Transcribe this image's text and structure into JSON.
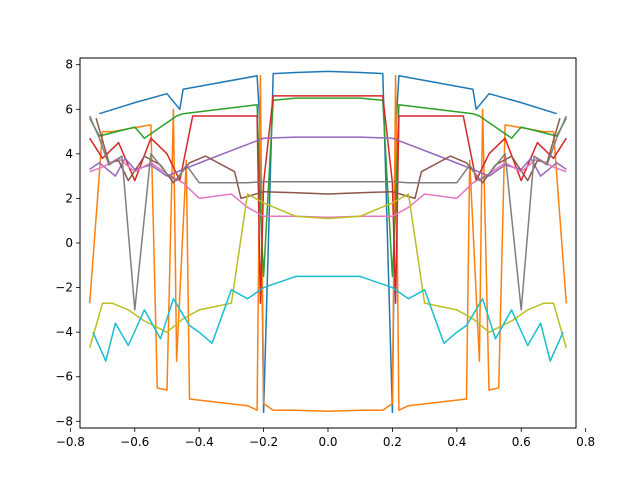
{
  "chart_data": {
    "type": "line",
    "title": "",
    "xlabel": "",
    "ylabel": "",
    "xlim": [
      -0.77,
      0.77
    ],
    "ylim": [
      -8.3,
      8.3
    ],
    "x_ticks": [
      -0.8,
      -0.6,
      -0.4,
      -0.2,
      0.0,
      0.2,
      0.4,
      0.6,
      0.8
    ],
    "x_tick_labels": [
      "−0.8",
      "−0.6",
      "−0.4",
      "−0.2",
      "0.0",
      "0.2",
      "0.4",
      "0.6",
      "0.8"
    ],
    "y_ticks": [
      -8,
      -6,
      -4,
      -2,
      0,
      2,
      4,
      6,
      8
    ],
    "y_tick_labels": [
      "−8",
      "−6",
      "−4",
      "−2",
      "0",
      "2",
      "4",
      "6",
      "8"
    ],
    "grid": false,
    "legend": "none",
    "series": [
      {
        "color": "#1f77b4",
        "x": [
          -0.71,
          -0.6,
          -0.5,
          -0.46,
          -0.45,
          -0.22,
          -0.21,
          -0.2,
          -0.17,
          -0.1,
          0.0,
          0.1,
          0.17,
          0.2,
          0.21,
          0.22,
          0.45,
          0.46,
          0.5,
          0.6,
          0.71
        ],
        "y": [
          5.8,
          6.3,
          6.7,
          6.0,
          6.9,
          7.5,
          5.0,
          -7.6,
          7.6,
          7.65,
          7.7,
          7.65,
          7.6,
          -7.6,
          5.0,
          7.5,
          6.9,
          6.0,
          6.7,
          6.3,
          5.8
        ]
      },
      {
        "color": "#ff7f0e",
        "x": [
          -0.74,
          -0.7,
          -0.67,
          -0.55,
          -0.53,
          -0.5,
          -0.48,
          -0.47,
          -0.44,
          -0.43,
          -0.25,
          -0.22,
          -0.21,
          -0.2,
          -0.17,
          -0.1,
          0.0,
          0.1,
          0.17,
          0.2,
          0.21,
          0.22,
          0.25,
          0.43,
          0.44,
          0.47,
          0.48,
          0.5,
          0.53,
          0.55,
          0.67,
          0.7,
          0.74
        ],
        "y": [
          -2.7,
          5.0,
          5.0,
          5.3,
          -6.5,
          -6.6,
          6.0,
          -5.3,
          3.7,
          -7.0,
          -7.3,
          -7.5,
          7.5,
          -7.2,
          -7.5,
          -7.5,
          -7.55,
          -7.5,
          -7.5,
          -7.2,
          7.5,
          -7.5,
          -7.3,
          -7.0,
          3.7,
          -5.3,
          6.0,
          -6.6,
          -6.5,
          5.3,
          5.0,
          5.0,
          -2.7
        ]
      },
      {
        "color": "#2ca02c",
        "x": [
          -0.74,
          -0.71,
          -0.6,
          -0.57,
          -0.47,
          -0.45,
          -0.22,
          -0.21,
          -0.2,
          -0.17,
          -0.1,
          0.0,
          0.1,
          0.17,
          0.2,
          0.21,
          0.22,
          0.45,
          0.47,
          0.57,
          0.6,
          0.71,
          0.74
        ],
        "y": [
          5.6,
          4.8,
          5.2,
          4.7,
          5.7,
          5.8,
          6.2,
          1.5,
          -1.5,
          6.4,
          6.5,
          6.5,
          6.5,
          6.4,
          -1.5,
          1.5,
          6.2,
          5.8,
          5.7,
          4.7,
          5.2,
          4.8,
          5.6
        ]
      },
      {
        "color": "#d62728",
        "x": [
          -0.74,
          -0.7,
          -0.65,
          -0.6,
          -0.55,
          -0.5,
          -0.46,
          -0.42,
          -0.22,
          -0.21,
          -0.2,
          -0.17,
          -0.1,
          0.0,
          0.1,
          0.17,
          0.2,
          0.21,
          0.22,
          0.42,
          0.46,
          0.5,
          0.55,
          0.6,
          0.65,
          0.7,
          0.74
        ],
        "y": [
          4.7,
          3.8,
          4.5,
          2.8,
          4.7,
          4.0,
          2.8,
          5.7,
          5.7,
          -2.7,
          2.7,
          6.6,
          6.6,
          6.6,
          6.6,
          6.6,
          2.7,
          -2.7,
          5.7,
          5.7,
          2.8,
          4.0,
          4.7,
          2.8,
          4.5,
          3.8,
          4.7
        ]
      },
      {
        "color": "#9467bd",
        "x": [
          -0.74,
          -0.71,
          -0.66,
          -0.63,
          -0.6,
          -0.55,
          -0.5,
          -0.45,
          -0.38,
          -0.2,
          -0.1,
          0.0,
          0.1,
          0.2,
          0.38,
          0.45,
          0.5,
          0.55,
          0.6,
          0.63,
          0.66,
          0.71,
          0.74
        ],
        "y": [
          3.3,
          3.6,
          3.0,
          3.8,
          3.3,
          3.5,
          3.0,
          3.3,
          3.7,
          4.7,
          4.75,
          4.75,
          4.75,
          4.7,
          3.7,
          3.3,
          3.0,
          3.5,
          3.3,
          3.8,
          3.0,
          3.6,
          3.3
        ]
      },
      {
        "color": "#8c564b",
        "x": [
          -0.72,
          -0.68,
          -0.65,
          -0.62,
          -0.57,
          -0.52,
          -0.48,
          -0.43,
          -0.38,
          -0.29,
          -0.27,
          -0.2,
          -0.1,
          0.0,
          0.1,
          0.2,
          0.27,
          0.29,
          0.38,
          0.43,
          0.48,
          0.52,
          0.57,
          0.62,
          0.65,
          0.68,
          0.72
        ],
        "y": [
          5.6,
          3.6,
          3.7,
          2.8,
          3.9,
          3.5,
          2.7,
          3.6,
          3.9,
          3.2,
          2.0,
          2.3,
          2.25,
          2.2,
          2.25,
          2.3,
          2.0,
          3.2,
          3.9,
          3.6,
          2.7,
          3.5,
          3.9,
          2.8,
          3.7,
          3.6,
          5.6
        ]
      },
      {
        "color": "#e377c2",
        "x": [
          -0.74,
          -0.7,
          -0.65,
          -0.6,
          -0.55,
          -0.5,
          -0.45,
          -0.4,
          -0.3,
          -0.25,
          -0.2,
          -0.1,
          0.0,
          0.1,
          0.2,
          0.25,
          0.3,
          0.4,
          0.45,
          0.5,
          0.55,
          0.6,
          0.65,
          0.7,
          0.74
        ],
        "y": [
          3.2,
          3.4,
          3.8,
          3.2,
          3.6,
          3.1,
          2.7,
          2.0,
          2.2,
          1.6,
          1.2,
          1.2,
          1.15,
          1.2,
          1.2,
          1.6,
          2.2,
          2.0,
          2.7,
          3.1,
          3.6,
          3.2,
          3.8,
          3.4,
          3.2
        ]
      },
      {
        "color": "#7f7f7f",
        "x": [
          -0.74,
          -0.71,
          -0.68,
          -0.64,
          -0.6,
          -0.55,
          -0.5,
          -0.47,
          -0.44,
          -0.4,
          -0.25,
          -0.2,
          -0.1,
          0.0,
          0.1,
          0.2,
          0.25,
          0.4,
          0.44,
          0.47,
          0.5,
          0.55,
          0.6,
          0.64,
          0.68,
          0.71,
          0.74
        ],
        "y": [
          5.7,
          4.7,
          3.5,
          3.9,
          -3.0,
          4.0,
          3.1,
          2.8,
          3.5,
          2.7,
          2.7,
          2.75,
          2.75,
          2.75,
          2.75,
          2.75,
          2.7,
          2.7,
          3.5,
          2.8,
          3.1,
          4.0,
          -3.0,
          3.9,
          3.5,
          4.7,
          5.7
        ]
      },
      {
        "color": "#bcbd22",
        "x": [
          -0.74,
          -0.7,
          -0.67,
          -0.62,
          -0.57,
          -0.5,
          -0.45,
          -0.4,
          -0.3,
          -0.25,
          -0.2,
          -0.1,
          0.0,
          0.1,
          0.2,
          0.25,
          0.3,
          0.4,
          0.45,
          0.5,
          0.57,
          0.62,
          0.67,
          0.7,
          0.74
        ],
        "y": [
          -4.7,
          -2.7,
          -2.7,
          -3.0,
          -3.5,
          -4.0,
          -3.4,
          -3.0,
          -2.7,
          2.2,
          1.8,
          1.2,
          1.1,
          1.2,
          1.8,
          2.2,
          -2.7,
          -3.0,
          -3.4,
          -4.0,
          -3.5,
          -3.0,
          -2.7,
          -2.7,
          -4.7
        ]
      },
      {
        "color": "#17becf",
        "x": [
          -0.73,
          -0.69,
          -0.66,
          -0.62,
          -0.57,
          -0.52,
          -0.48,
          -0.43,
          -0.4,
          -0.36,
          -0.3,
          -0.25,
          -0.2,
          -0.1,
          0.0,
          0.1,
          0.2,
          0.25,
          0.3,
          0.36,
          0.4,
          0.43,
          0.48,
          0.52,
          0.57,
          0.62,
          0.66,
          0.69,
          0.73
        ],
        "y": [
          -4.0,
          -5.3,
          -3.6,
          -4.6,
          -3.0,
          -4.3,
          -2.5,
          -3.7,
          -4.0,
          -4.5,
          -2.1,
          -2.5,
          -2.0,
          -1.5,
          -1.5,
          -1.5,
          -2.0,
          -2.5,
          -2.1,
          -4.5,
          -4.0,
          -3.7,
          -2.5,
          -4.3,
          -3.0,
          -4.6,
          -3.6,
          -5.3,
          -4.0
        ]
      }
    ]
  }
}
